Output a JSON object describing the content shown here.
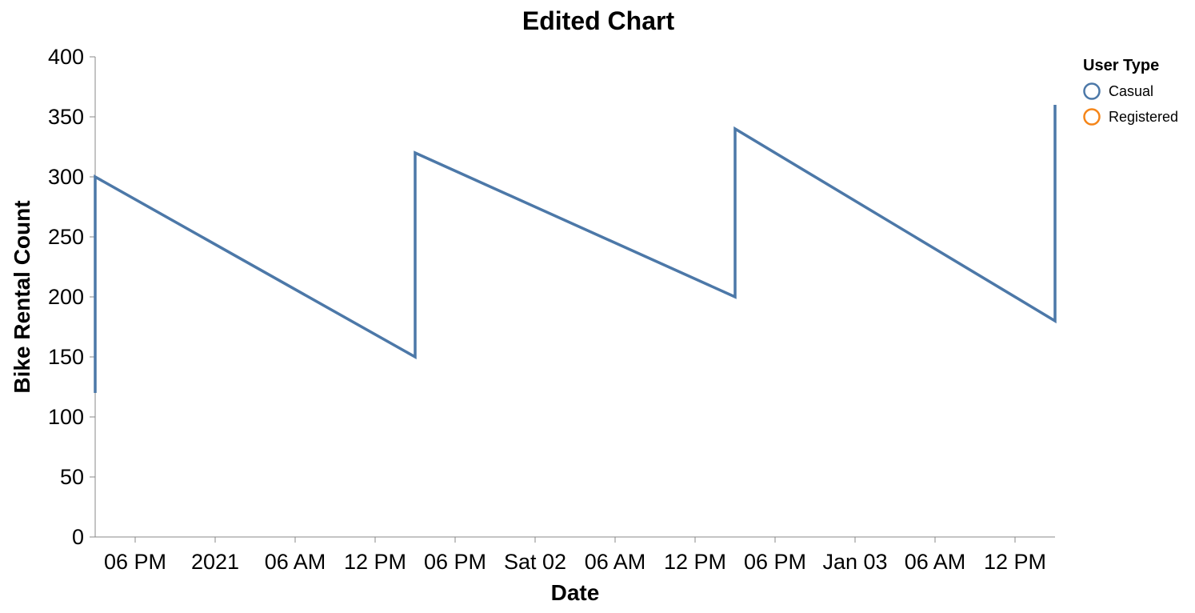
{
  "chart_data": {
    "type": "line",
    "title": "Edited Chart",
    "xlabel": "Date",
    "ylabel": "Bike Rental Count",
    "ylim": [
      0,
      400
    ],
    "yticks": [
      0,
      50,
      100,
      150,
      200,
      250,
      300,
      350,
      400
    ],
    "xlim": [
      "2020-12-31T15:00",
      "2021-01-03T15:00"
    ],
    "xticks": [
      {
        "t": "2020-12-31T18:00",
        "label": "06 PM"
      },
      {
        "t": "2021-01-01T00:00",
        "label": "2021"
      },
      {
        "t": "2021-01-01T06:00",
        "label": "06 AM"
      },
      {
        "t": "2021-01-01T12:00",
        "label": "12 PM"
      },
      {
        "t": "2021-01-01T18:00",
        "label": "06 PM"
      },
      {
        "t": "2021-01-02T00:00",
        "label": "Sat 02"
      },
      {
        "t": "2021-01-02T06:00",
        "label": "06 AM"
      },
      {
        "t": "2021-01-02T12:00",
        "label": "12 PM"
      },
      {
        "t": "2021-01-02T18:00",
        "label": "06 PM"
      },
      {
        "t": "2021-01-03T00:00",
        "label": "Jan 03"
      },
      {
        "t": "2021-01-03T06:00",
        "label": "06 AM"
      },
      {
        "t": "2021-01-03T12:00",
        "label": "12 PM"
      }
    ],
    "grid": false,
    "legend": {
      "title": "User Type",
      "placement": "top-right",
      "entries": [
        {
          "name": "Casual",
          "color": "#4c78a8"
        },
        {
          "name": "Registered",
          "color": "#f58518"
        }
      ]
    },
    "series": [
      {
        "name": "Casual",
        "color": "#4c78a8",
        "points": [
          {
            "x": "2020-12-31T15:00",
            "y": 120
          },
          {
            "x": "2020-12-31T15:00",
            "y": 300
          },
          {
            "x": "2021-01-01T15:00",
            "y": 150
          },
          {
            "x": "2021-01-01T15:00",
            "y": 320
          },
          {
            "x": "2021-01-02T15:00",
            "y": 200
          },
          {
            "x": "2021-01-02T15:00",
            "y": 340
          },
          {
            "x": "2021-01-03T15:00",
            "y": 180
          },
          {
            "x": "2021-01-03T15:00",
            "y": 360
          }
        ]
      },
      {
        "name": "Registered",
        "color": "#f58518",
        "points": []
      }
    ]
  }
}
